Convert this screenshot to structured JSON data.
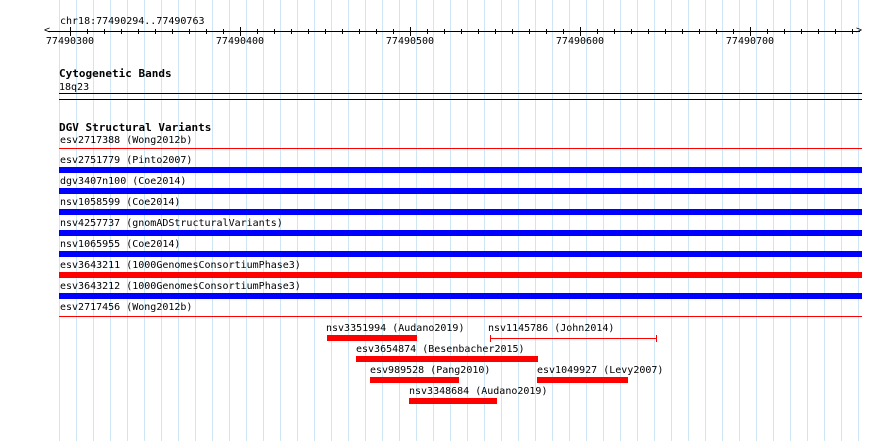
{
  "ruler": {
    "location": "chr18:77490294..77490763",
    "ticks": [
      "77490300",
      "77490400",
      "77490500",
      "77490600",
      "77490700"
    ]
  },
  "cytobands": {
    "title": "Cytogenetic Bands",
    "band": "18q23"
  },
  "dgv": {
    "title": "DGV Structural Variants",
    "full_tracks": [
      {
        "label": "esv2717388 (Wong2012b)",
        "color": "#ff0000",
        "style": "thin"
      },
      {
        "label": "esv2751779 (Pinto2007)",
        "color": "#0000ff",
        "style": "thick"
      },
      {
        "label": "dgv3407n100 (Coe2014)",
        "color": "#0000ff",
        "style": "thick"
      },
      {
        "label": "nsv1058599 (Coe2014)",
        "color": "#0000ff",
        "style": "thick"
      },
      {
        "label": "nsv4257737 (gnomADStructuralVariants)",
        "color": "#0000ff",
        "style": "thick"
      },
      {
        "label": "nsv1065955 (Coe2014)",
        "color": "#0000ff",
        "style": "thick"
      },
      {
        "label": "esv3643211 (1000GenomesConsortiumPhase3)",
        "color": "#ff0000",
        "style": "thick"
      },
      {
        "label": "esv3643212 (1000GenomesConsortiumPhase3)",
        "color": "#0000ff",
        "style": "thick"
      },
      {
        "label": "esv2717456 (Wong2012b)",
        "color": "#ff0000",
        "style": "thin"
      }
    ],
    "partial_tracks": [
      {
        "label": "nsv3351994 (Audano2019)",
        "color": "#ff0000",
        "style": "thick"
      },
      {
        "label": "nsv1145786 (John2014)",
        "color": "#ff0000",
        "style": "interval"
      },
      {
        "label": "esv3654874 (Besenbacher2015)",
        "color": "#ff0000",
        "style": "thick"
      },
      {
        "label": "esv989528 (Pang2010)",
        "color": "#ff0000",
        "style": "thick"
      },
      {
        "label": "esv1049927 (Levy2007)",
        "color": "#ff0000",
        "style": "thick"
      },
      {
        "label": "nsv3348684 (Audano2019)",
        "color": "#ff0000",
        "style": "thick"
      }
    ]
  }
}
